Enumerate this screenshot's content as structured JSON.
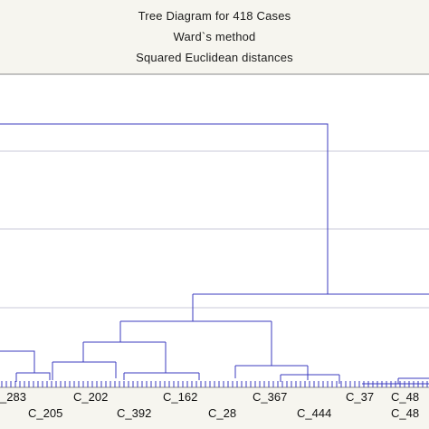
{
  "chart_data": {
    "type": "dendrogram",
    "title": "Tree Diagram for 418 Cases",
    "subtitle_1": "Ward`s method",
    "subtitle_2": "Squared Euclidean distances",
    "xlabel": "",
    "ylabel": "",
    "grid": "horizontal",
    "leaf_labels_upper": [
      "_283",
      "C_202",
      "C_162",
      "C_367",
      "C_37",
      "C_48"
    ],
    "leaf_labels_lower": [
      "C_205",
      "C_392",
      "C_28",
      "C_444",
      "C_48"
    ],
    "colors": {
      "background": "#f6f5ef",
      "plot_background": "#ffffff",
      "link": "#3b3bbf",
      "grid": "#c9c9d8",
      "axis": "#8a8a8a"
    }
  }
}
